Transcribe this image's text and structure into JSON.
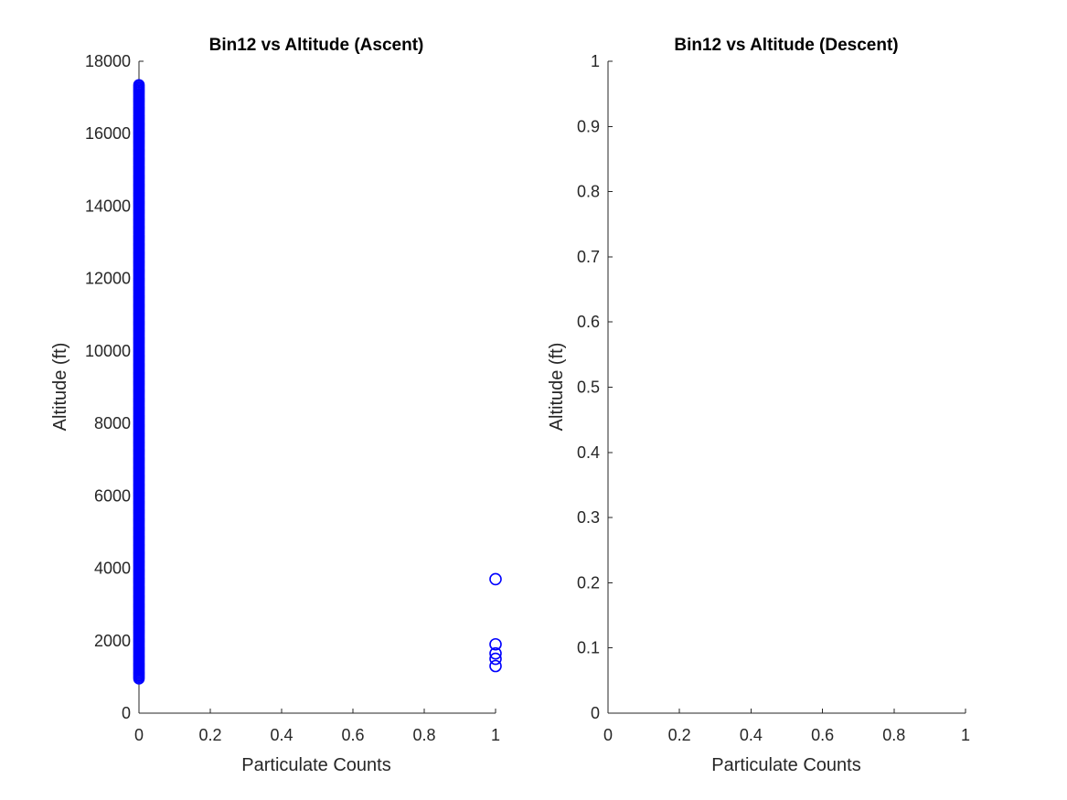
{
  "chart_data": [
    {
      "type": "scatter",
      "title": "Bin12 vs Altitude (Ascent)",
      "xlabel": "Particulate Counts",
      "ylabel": "Altitude (ft)",
      "xlim": [
        0,
        1
      ],
      "ylim": [
        0,
        18000
      ],
      "xticks": [
        "0",
        "0.2",
        "0.4",
        "0.6",
        "0.8",
        "1"
      ],
      "yticks": [
        "0",
        "2000",
        "4000",
        "6000",
        "8000",
        "10000",
        "12000",
        "14000",
        "16000",
        "18000"
      ],
      "grid": false,
      "marker": "open-circle",
      "marker_color": "#0000ff",
      "series": [
        {
          "x_dense_column": 0,
          "y_dense_range": [
            950,
            17350
          ],
          "points": [
            {
              "x": 1,
              "y": 3700
            },
            {
              "x": 1,
              "y": 1900
            },
            {
              "x": 1,
              "y": 1650
            },
            {
              "x": 1,
              "y": 1500
            },
            {
              "x": 1,
              "y": 1300
            }
          ]
        }
      ]
    },
    {
      "type": "scatter",
      "title": "Bin12 vs Altitude (Descent)",
      "xlabel": "Particulate Counts",
      "ylabel": "Altitude (ft)",
      "xlim": [
        0,
        1
      ],
      "ylim": [
        0,
        1
      ],
      "xticks": [
        "0",
        "0.2",
        "0.4",
        "0.6",
        "0.8",
        "1"
      ],
      "yticks": [
        "0",
        "0.1",
        "0.2",
        "0.3",
        "0.4",
        "0.5",
        "0.6",
        "0.7",
        "0.8",
        "0.9",
        "1"
      ],
      "grid": false,
      "series": []
    }
  ]
}
